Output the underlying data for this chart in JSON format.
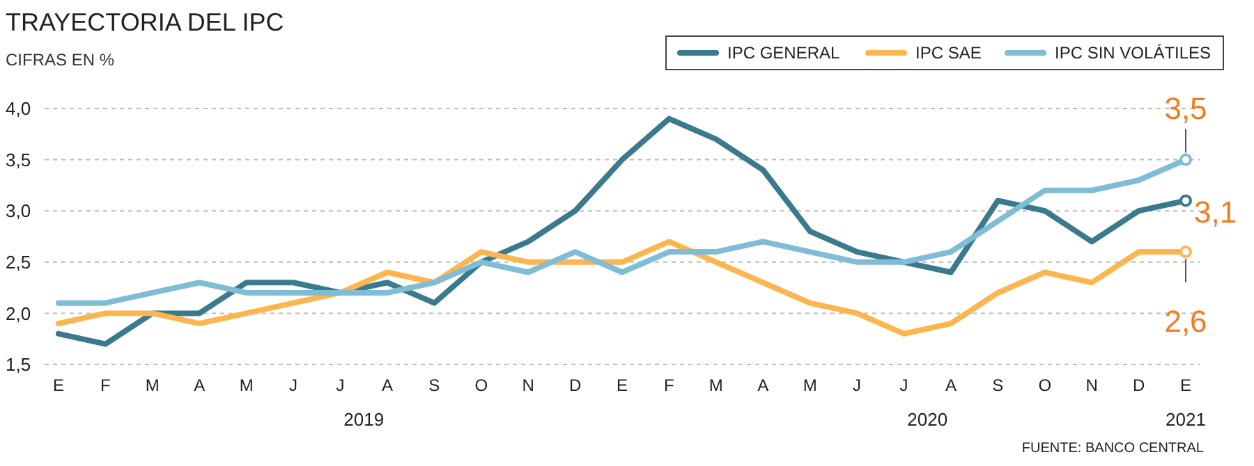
{
  "chart_data": {
    "type": "line",
    "title": "TRAYECTORIA DEL IPC",
    "subtitle": "CIFRAS EN %",
    "categories": [
      "E",
      "F",
      "M",
      "A",
      "M",
      "J",
      "J",
      "A",
      "S",
      "O",
      "N",
      "D",
      "E",
      "F",
      "M",
      "A",
      "M",
      "J",
      "J",
      "A",
      "S",
      "O",
      "N",
      "D",
      "E"
    ],
    "series": [
      {
        "name": "IPC GENERAL",
        "color": "#3a7a8c",
        "values": [
          1.8,
          1.7,
          2.0,
          2.0,
          2.3,
          2.3,
          2.2,
          2.3,
          2.1,
          2.5,
          2.7,
          3.0,
          3.5,
          3.9,
          3.7,
          3.4,
          2.8,
          2.6,
          2.5,
          2.4,
          3.1,
          3.0,
          2.7,
          3.0,
          3.1
        ],
        "value_labels": [
          null,
          null,
          null,
          null,
          null,
          null,
          null,
          null,
          null,
          null,
          null,
          null,
          null,
          null,
          null,
          null,
          null,
          null,
          null,
          null,
          null,
          null,
          null,
          null,
          "3,1"
        ]
      },
      {
        "name": "IPC SAE",
        "color": "#fdb54f",
        "values": [
          1.9,
          2.0,
          2.0,
          1.9,
          2.0,
          2.1,
          2.2,
          2.4,
          2.3,
          2.6,
          2.5,
          2.5,
          2.5,
          2.7,
          2.5,
          2.3,
          2.1,
          2.0,
          1.8,
          1.9,
          2.2,
          2.4,
          2.3,
          2.6,
          2.6
        ],
        "value_labels": [
          null,
          null,
          null,
          null,
          null,
          null,
          null,
          null,
          null,
          null,
          null,
          null,
          null,
          null,
          null,
          null,
          null,
          null,
          null,
          null,
          null,
          null,
          null,
          null,
          "2,6"
        ]
      },
      {
        "name": "IPC SIN VOLÁTILES",
        "color": "#7fbcd6",
        "values": [
          2.1,
          2.1,
          2.2,
          2.3,
          2.2,
          2.2,
          2.2,
          2.2,
          2.3,
          2.5,
          2.4,
          2.6,
          2.4,
          2.6,
          2.6,
          2.7,
          2.6,
          2.5,
          2.5,
          2.6,
          2.9,
          3.2,
          3.2,
          3.3,
          3.5
        ],
        "value_labels": [
          null,
          null,
          null,
          null,
          null,
          null,
          null,
          null,
          null,
          null,
          null,
          null,
          null,
          null,
          null,
          null,
          null,
          null,
          null,
          null,
          null,
          null,
          null,
          null,
          "3,5"
        ]
      }
    ],
    "ylim": [
      1.5,
      4.0
    ],
    "yticks": [
      {
        "value": 1.5,
        "label": "1,5"
      },
      {
        "value": 2.0,
        "label": "2,0"
      },
      {
        "value": 2.5,
        "label": "2,5"
      },
      {
        "value": 3.0,
        "label": "3,0"
      },
      {
        "value": 3.5,
        "label": "3,5"
      },
      {
        "value": 4.0,
        "label": "4,0"
      }
    ],
    "grid": "y",
    "legend": "top right",
    "marker": "none",
    "line_style": "solid",
    "annotations": [
      "2019",
      "2020",
      "2021",
      "FUENTE: BANCO CENTRAL"
    ]
  }
}
